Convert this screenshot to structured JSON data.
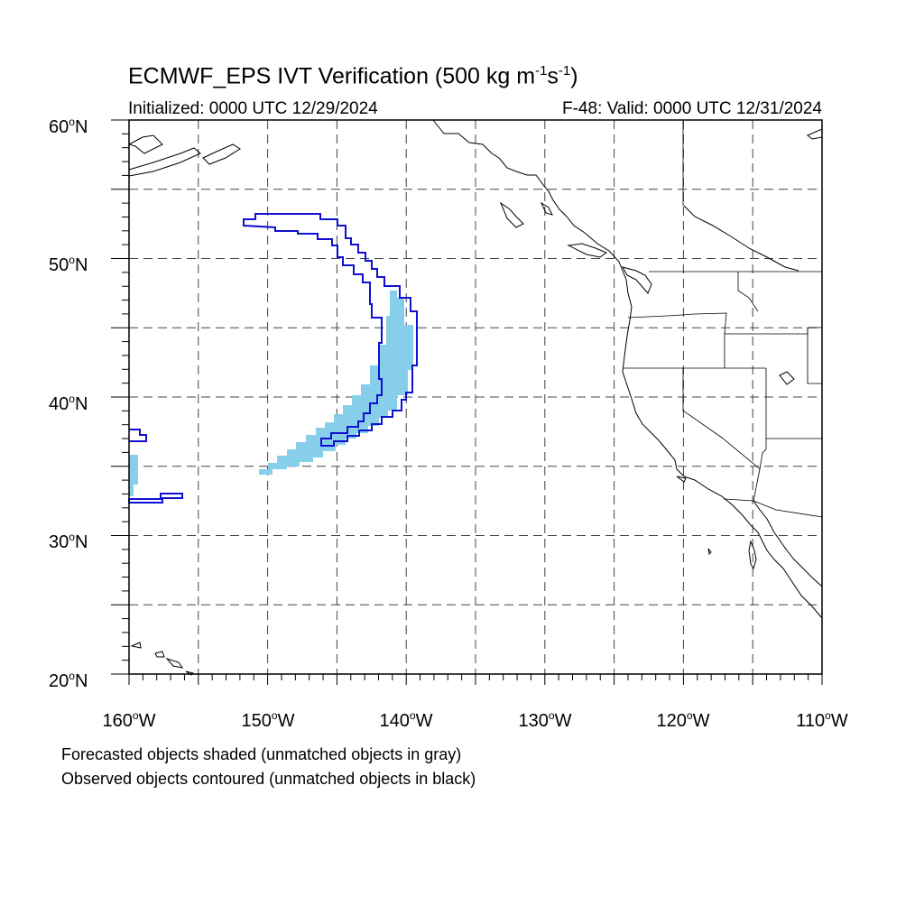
{
  "map": {
    "title_main": "ECMWF_EPS IVT Verification (500 kg m",
    "title_exp1": "-1",
    "title_mid": "s",
    "title_exp2": "-1",
    "title_end": ")",
    "initialized": "Initialized: 0000 UTC 12/29/2024",
    "valid": "F-48: Valid: 0000 UTC 12/31/2024",
    "lat_labels": [
      "20",
      "30",
      "40",
      "50",
      "60"
    ],
    "lat_suffix": "N",
    "lon_labels": [
      "160",
      "150",
      "140",
      "130",
      "120",
      "110"
    ],
    "lon_suffix": "W",
    "degree_symbol": "o",
    "extent": {
      "lon_min": -160,
      "lon_max": -110,
      "lat_min": 20,
      "lat_max": 60
    },
    "colors": {
      "forecast_shade": "#87ceeb",
      "observed_contour": "#1010d0",
      "coastline": "#000000"
    },
    "notes": [
      "Forecasted objects shaded (unmatched objects in gray)",
      "Observed objects contoured (unmatched objects in black)"
    ]
  }
}
